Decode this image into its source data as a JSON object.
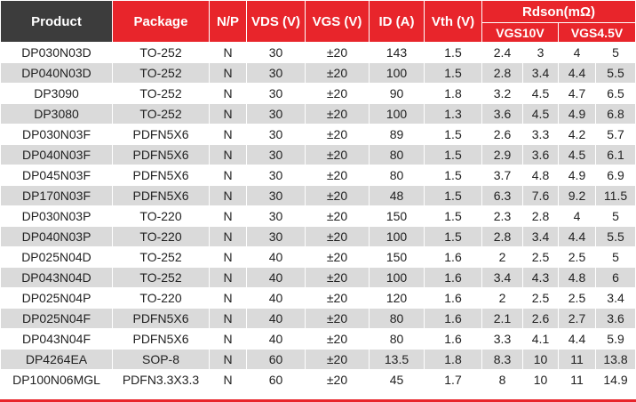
{
  "headers": {
    "product": "Product",
    "package": "Package",
    "np": "N/P",
    "vds": "VDS (V)",
    "vgs": "VGS (V)",
    "id": "ID (A)",
    "vth": "Vth (V)",
    "rdson": "Rdson(mΩ)",
    "vgs10": "VGS10V",
    "vgs45": "VGS4.5V"
  },
  "rows": [
    [
      "DP030N03D",
      "TO-252",
      "N",
      "30",
      "±20",
      "143",
      "1.5",
      "2.4",
      "3",
      "4",
      "5"
    ],
    [
      "DP040N03D",
      "TO-252",
      "N",
      "30",
      "±20",
      "100",
      "1.5",
      "2.8",
      "3.4",
      "4.4",
      "5.5"
    ],
    [
      "DP3090",
      "TO-252",
      "N",
      "30",
      "±20",
      "90",
      "1.8",
      "3.2",
      "4.5",
      "4.7",
      "6.5"
    ],
    [
      "DP3080",
      "TO-252",
      "N",
      "30",
      "±20",
      "100",
      "1.3",
      "3.6",
      "4.5",
      "4.9",
      "6.8"
    ],
    [
      "DP030N03F",
      "PDFN5X6",
      "N",
      "30",
      "±20",
      "89",
      "1.5",
      "2.6",
      "3.3",
      "4.2",
      "5.7"
    ],
    [
      "DP040N03F",
      "PDFN5X6",
      "N",
      "30",
      "±20",
      "80",
      "1.5",
      "2.9",
      "3.6",
      "4.5",
      "6.1"
    ],
    [
      "DP045N03F",
      "PDFN5X6",
      "N",
      "30",
      "±20",
      "80",
      "1.5",
      "3.7",
      "4.8",
      "4.9",
      "6.9"
    ],
    [
      "DP170N03F",
      "PDFN5X6",
      "N",
      "30",
      "±20",
      "48",
      "1.5",
      "6.3",
      "7.6",
      "9.2",
      "11.5"
    ],
    [
      "DP030N03P",
      "TO-220",
      "N",
      "30",
      "±20",
      "150",
      "1.5",
      "2.3",
      "2.8",
      "4",
      "5"
    ],
    [
      "DP040N03P",
      "TO-220",
      "N",
      "30",
      "±20",
      "100",
      "1.5",
      "2.8",
      "3.4",
      "4.4",
      "5.5"
    ],
    [
      "DP025N04D",
      "TO-252",
      "N",
      "40",
      "±20",
      "150",
      "1.6",
      "2",
      "2.5",
      "2.5",
      "5"
    ],
    [
      "DP043N04D",
      "TO-252",
      "N",
      "40",
      "±20",
      "100",
      "1.6",
      "3.4",
      "4.3",
      "4.8",
      "6"
    ],
    [
      "DP025N04P",
      "TO-220",
      "N",
      "40",
      "±20",
      "120",
      "1.6",
      "2",
      "2.5",
      "2.5",
      "3.4"
    ],
    [
      "DP025N04F",
      "PDFN5X6",
      "N",
      "40",
      "±20",
      "80",
      "1.6",
      "2.1",
      "2.6",
      "2.7",
      "3.6"
    ],
    [
      "DP043N04F",
      "PDFN5X6",
      "N",
      "40",
      "±20",
      "80",
      "1.6",
      "3.3",
      "4.1",
      "4.4",
      "5.9"
    ],
    [
      "DP4264EA",
      "SOP-8",
      "N",
      "60",
      "±20",
      "13.5",
      "1.8",
      "8.3",
      "10",
      "11",
      "13.8"
    ],
    [
      "DP100N06MGL",
      "PDFN3.3X3.3",
      "N",
      "60",
      "±20",
      "45",
      "1.7",
      "8",
      "10",
      "11",
      "14.9"
    ]
  ],
  "colors": {
    "header_dark": "#3c3c3c",
    "header_red": "#e8252b",
    "row_stripe": "#dadada",
    "text": "#222222"
  }
}
